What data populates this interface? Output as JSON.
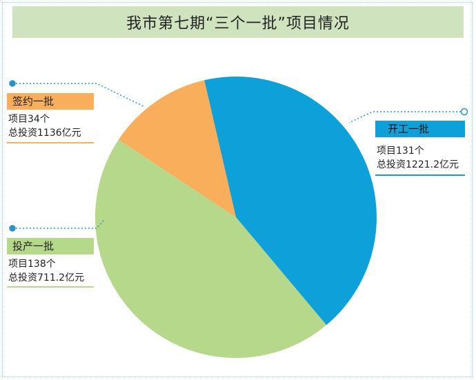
{
  "title": "我市第七期“三个一批”项目情况",
  "colors": {
    "title_bg": "#cfe3bf",
    "kaigong": "#0ea1d9",
    "touchan": "#b6d88a",
    "qianyue": "#f9ae5b",
    "callout_line": "#2a93c6"
  },
  "chart_data": {
    "type": "pie",
    "title": "我市第七期“三个一批”项目情况",
    "slices": [
      {
        "label": "开工一批",
        "projects_label": "项目131个",
        "investment_label": "总投资1221.2亿元",
        "projects": 131,
        "investment": 1221.2
      },
      {
        "label": "投产一批",
        "projects_label": "项目138个",
        "investment_label": "总投资711.2亿元",
        "projects": 138,
        "investment": 711.2
      },
      {
        "label": "签约一批",
        "projects_label": "项目34个",
        "investment_label": "总投资1136亿元",
        "projects": 34,
        "investment": 1136
      }
    ],
    "slice_sizes_percent": [
      42.5,
      45.4,
      12.1
    ]
  }
}
